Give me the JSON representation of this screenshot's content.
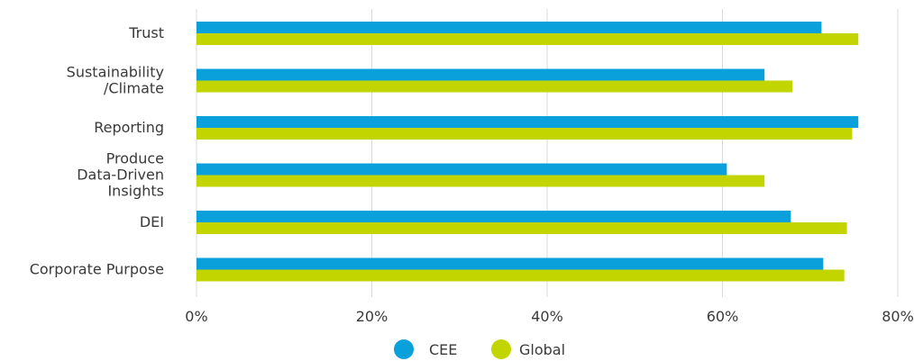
{
  "chart_data": {
    "type": "bar",
    "orientation": "horizontal",
    "categories": [
      "Trust",
      "Sustainability\n/Climate",
      "Reporting",
      "Produce\nData-Driven\nInsights",
      "DEI",
      "Corporate Purpose"
    ],
    "series": [
      {
        "name": "CEE",
        "color": "#0aa0dc",
        "values": [
          71.3,
          64.8,
          75.5,
          60.5,
          67.8,
          71.5
        ]
      },
      {
        "name": "Global",
        "color": "#c3d500",
        "values": [
          75.5,
          68.0,
          74.8,
          64.8,
          74.2,
          73.9
        ]
      }
    ],
    "xlim": [
      0,
      80
    ],
    "x_ticks": [
      0,
      20,
      40,
      60,
      80
    ],
    "x_tick_labels": [
      "0%",
      "20%",
      "40%",
      "60%",
      "80%"
    ],
    "grid": "vertical",
    "legend": "bottom-center"
  }
}
